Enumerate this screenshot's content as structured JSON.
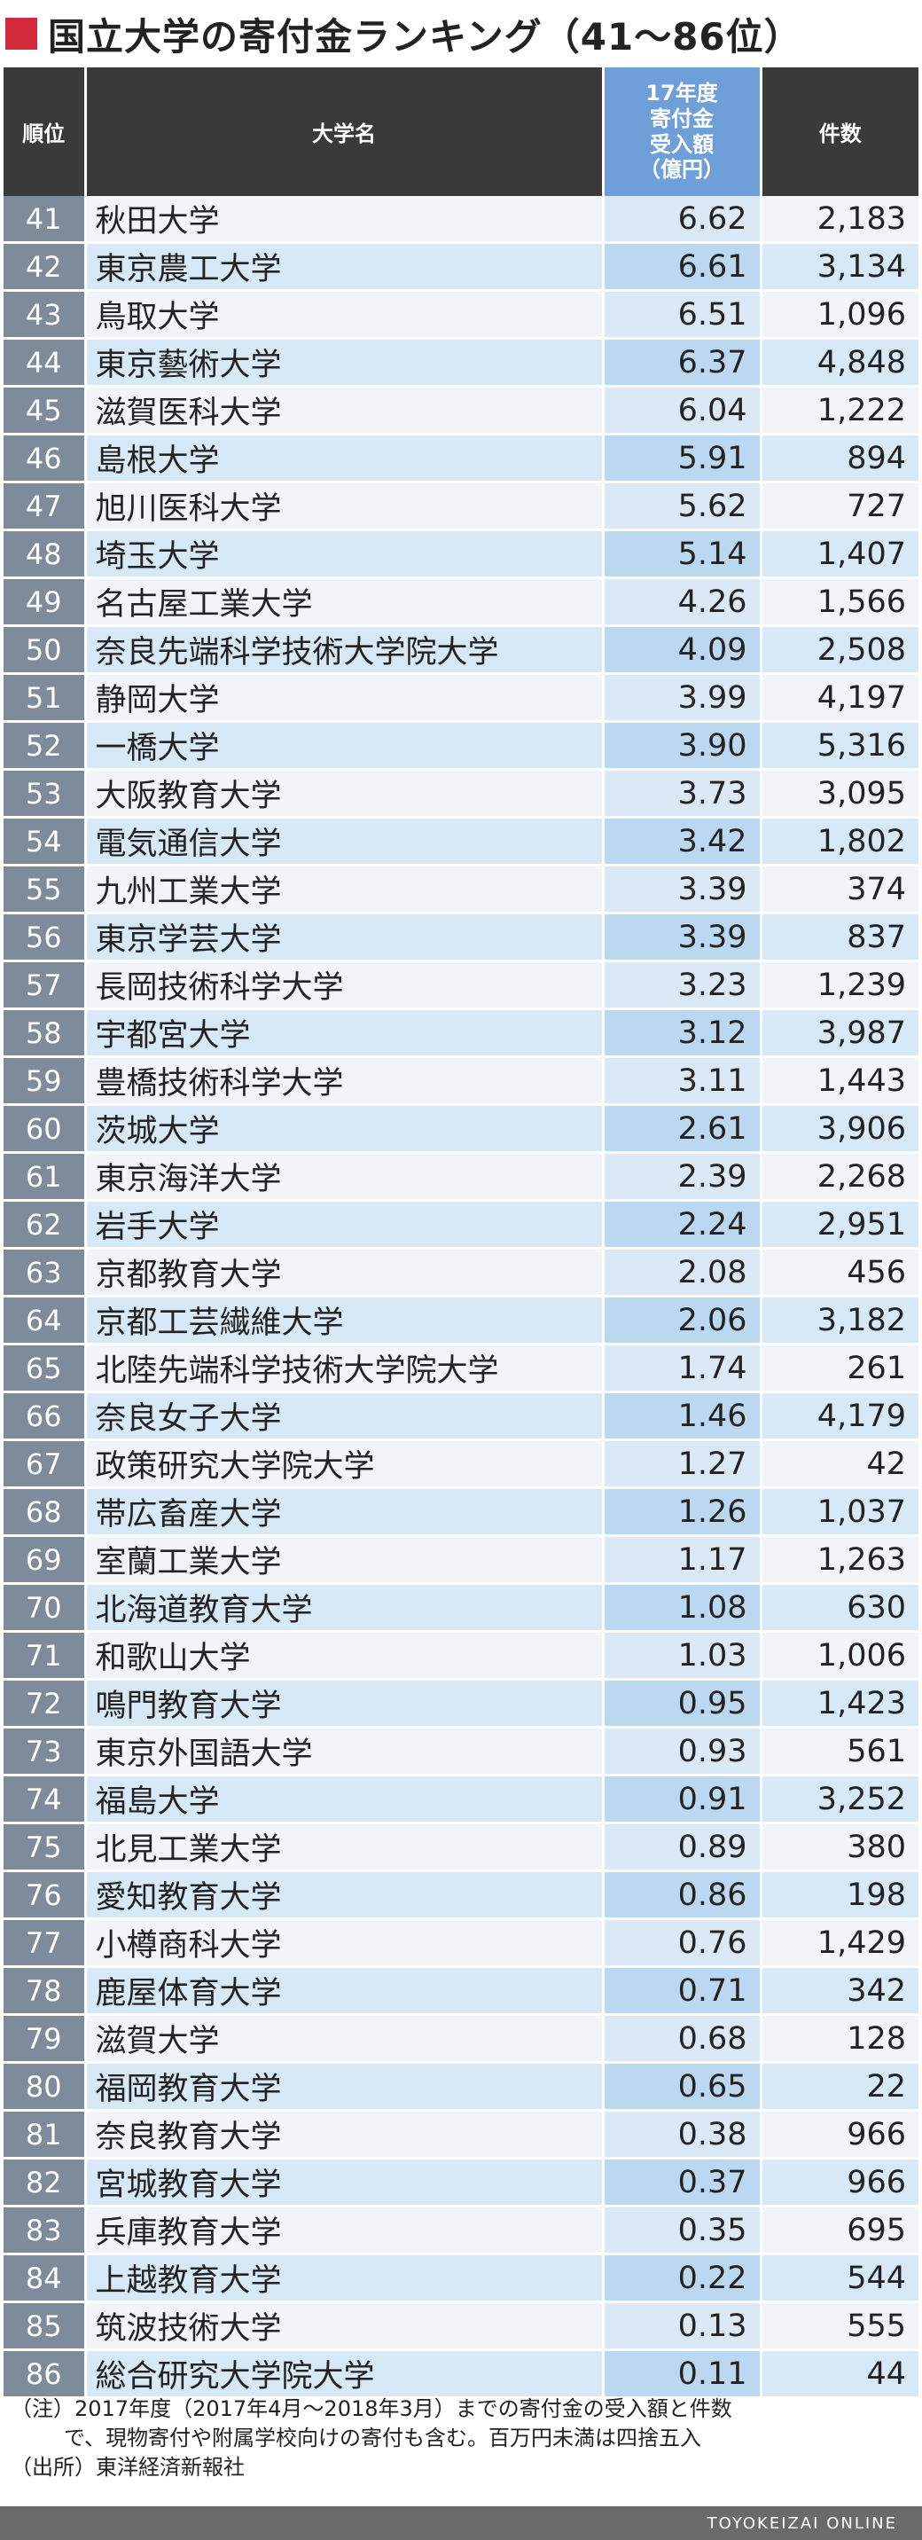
{
  "title": "国立大学の寄付金ランキング（41～86位）",
  "colors": {
    "title_mark": "#d22a3b",
    "header_dark": "#3a3a3a",
    "header_blue": "#6f9fd8",
    "rank_cell": "#7d8b9b"
  },
  "headers": {
    "rank": "順位",
    "name": "大学名",
    "amount_lines": [
      "17年度",
      "寄付金",
      "受入額",
      "（億円）"
    ],
    "count": "件数"
  },
  "chart_data": {
    "type": "table",
    "title": "国立大学の寄付金ランキング（41～86位）",
    "columns": [
      "順位",
      "大学名",
      "17年度寄付金受入額（億円）",
      "件数"
    ],
    "rows": [
      {
        "rank": "41",
        "name": "秋田大学",
        "amount": "6.62",
        "count": "2,183"
      },
      {
        "rank": "42",
        "name": "東京農工大学",
        "amount": "6.61",
        "count": "3,134"
      },
      {
        "rank": "43",
        "name": "鳥取大学",
        "amount": "6.51",
        "count": "1,096"
      },
      {
        "rank": "44",
        "name": "東京藝術大学",
        "amount": "6.37",
        "count": "4,848"
      },
      {
        "rank": "45",
        "name": "滋賀医科大学",
        "amount": "6.04",
        "count": "1,222"
      },
      {
        "rank": "46",
        "name": "島根大学",
        "amount": "5.91",
        "count": "894"
      },
      {
        "rank": "47",
        "name": "旭川医科大学",
        "amount": "5.62",
        "count": "727"
      },
      {
        "rank": "48",
        "name": "埼玉大学",
        "amount": "5.14",
        "count": "1,407"
      },
      {
        "rank": "49",
        "name": "名古屋工業大学",
        "amount": "4.26",
        "count": "1,566"
      },
      {
        "rank": "50",
        "name": "奈良先端科学技術大学院大学",
        "amount": "4.09",
        "count": "2,508"
      },
      {
        "rank": "51",
        "name": "静岡大学",
        "amount": "3.99",
        "count": "4,197"
      },
      {
        "rank": "52",
        "name": "一橋大学",
        "amount": "3.90",
        "count": "5,316"
      },
      {
        "rank": "53",
        "name": "大阪教育大学",
        "amount": "3.73",
        "count": "3,095"
      },
      {
        "rank": "54",
        "name": "電気通信大学",
        "amount": "3.42",
        "count": "1,802"
      },
      {
        "rank": "55",
        "name": "九州工業大学",
        "amount": "3.39",
        "count": "374"
      },
      {
        "rank": "56",
        "name": "東京学芸大学",
        "amount": "3.39",
        "count": "837"
      },
      {
        "rank": "57",
        "name": "長岡技術科学大学",
        "amount": "3.23",
        "count": "1,239"
      },
      {
        "rank": "58",
        "name": "宇都宮大学",
        "amount": "3.12",
        "count": "3,987"
      },
      {
        "rank": "59",
        "name": "豊橋技術科学大学",
        "amount": "3.11",
        "count": "1,443"
      },
      {
        "rank": "60",
        "name": "茨城大学",
        "amount": "2.61",
        "count": "3,906"
      },
      {
        "rank": "61",
        "name": "東京海洋大学",
        "amount": "2.39",
        "count": "2,268"
      },
      {
        "rank": "62",
        "name": "岩手大学",
        "amount": "2.24",
        "count": "2,951"
      },
      {
        "rank": "63",
        "name": "京都教育大学",
        "amount": "2.08",
        "count": "456"
      },
      {
        "rank": "64",
        "name": "京都工芸繊維大学",
        "amount": "2.06",
        "count": "3,182"
      },
      {
        "rank": "65",
        "name": "北陸先端科学技術大学院大学",
        "amount": "1.74",
        "count": "261"
      },
      {
        "rank": "66",
        "name": "奈良女子大学",
        "amount": "1.46",
        "count": "4,179"
      },
      {
        "rank": "67",
        "name": "政策研究大学院大学",
        "amount": "1.27",
        "count": "42"
      },
      {
        "rank": "68",
        "name": "帯広畜産大学",
        "amount": "1.26",
        "count": "1,037"
      },
      {
        "rank": "69",
        "name": "室蘭工業大学",
        "amount": "1.17",
        "count": "1,263"
      },
      {
        "rank": "70",
        "name": "北海道教育大学",
        "amount": "1.08",
        "count": "630"
      },
      {
        "rank": "71",
        "name": "和歌山大学",
        "amount": "1.03",
        "count": "1,006"
      },
      {
        "rank": "72",
        "name": "鳴門教育大学",
        "amount": "0.95",
        "count": "1,423"
      },
      {
        "rank": "73",
        "name": "東京外国語大学",
        "amount": "0.93",
        "count": "561"
      },
      {
        "rank": "74",
        "name": "福島大学",
        "amount": "0.91",
        "count": "3,252"
      },
      {
        "rank": "75",
        "name": "北見工業大学",
        "amount": "0.89",
        "count": "380"
      },
      {
        "rank": "76",
        "name": "愛知教育大学",
        "amount": "0.86",
        "count": "198"
      },
      {
        "rank": "77",
        "name": "小樽商科大学",
        "amount": "0.76",
        "count": "1,429"
      },
      {
        "rank": "78",
        "name": "鹿屋体育大学",
        "amount": "0.71",
        "count": "342"
      },
      {
        "rank": "79",
        "name": "滋賀大学",
        "amount": "0.68",
        "count": "128"
      },
      {
        "rank": "80",
        "name": "福岡教育大学",
        "amount": "0.65",
        "count": "22"
      },
      {
        "rank": "81",
        "name": "奈良教育大学",
        "amount": "0.38",
        "count": "966"
      },
      {
        "rank": "82",
        "name": "宮城教育大学",
        "amount": "0.37",
        "count": "966"
      },
      {
        "rank": "83",
        "name": "兵庫教育大学",
        "amount": "0.35",
        "count": "695"
      },
      {
        "rank": "84",
        "name": "上越教育大学",
        "amount": "0.22",
        "count": "544"
      },
      {
        "rank": "85",
        "name": "筑波技術大学",
        "amount": "0.13",
        "count": "555"
      },
      {
        "rank": "86",
        "name": "総合研究大学院大学",
        "amount": "0.11",
        "count": "44"
      }
    ]
  },
  "notes": {
    "line1": "（注）2017年度（2017年4月～2018年3月）までの寄付金の受入額と件数",
    "line2": "で、現物寄付や附属学校向けの寄付も含む。百万円未満は四捨五入",
    "source": "（出所）東洋経済新報社"
  },
  "footer": "TOYOKEIZAI ONLINE"
}
